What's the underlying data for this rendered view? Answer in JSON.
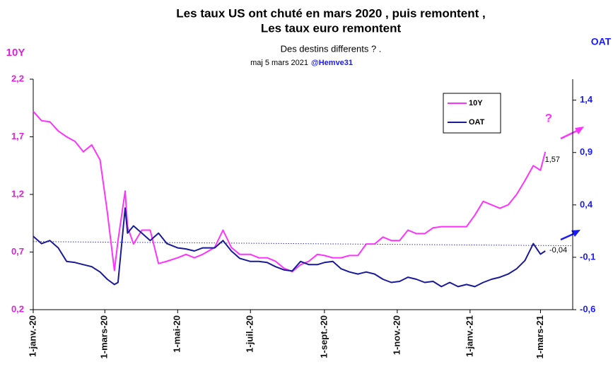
{
  "chart_data": {
    "type": "line",
    "title": [
      "Les taux  US ont chuté en mars 2020 , puis remontent ,",
      "Les taux euro remontent"
    ],
    "subtitle": "Des destins differents ?  .",
    "update": "maj 5 mars 2021",
    "credit": "@Hemve31",
    "ylabel": "10Y",
    "y2label": "OAT",
    "x": [
      "2020-01-01",
      "2020-01-08",
      "2020-01-15",
      "2020-01-22",
      "2020-01-29",
      "2020-02-05",
      "2020-02-12",
      "2020-02-19",
      "2020-02-26",
      "2020-03-03",
      "2020-03-09",
      "2020-03-12",
      "2020-03-18",
      "2020-03-20",
      "2020-03-25",
      "2020-04-01",
      "2020-04-08",
      "2020-04-15",
      "2020-04-22",
      "2020-05-01",
      "2020-05-08",
      "2020-05-15",
      "2020-05-22",
      "2020-06-01",
      "2020-06-08",
      "2020-06-15",
      "2020-06-22",
      "2020-07-01",
      "2020-07-08",
      "2020-07-15",
      "2020-07-22",
      "2020-07-29",
      "2020-08-05",
      "2020-08-12",
      "2020-08-19",
      "2020-08-26",
      "2020-09-01",
      "2020-09-08",
      "2020-09-15",
      "2020-09-22",
      "2020-09-29",
      "2020-10-06",
      "2020-10-13",
      "2020-10-20",
      "2020-10-27",
      "2020-11-03",
      "2020-11-10",
      "2020-11-17",
      "2020-11-24",
      "2020-12-01",
      "2020-12-08",
      "2020-12-15",
      "2020-12-22",
      "2020-12-29",
      "2021-01-05",
      "2021-01-12",
      "2021-01-19",
      "2021-01-26",
      "2021-02-02",
      "2021-02-09",
      "2021-02-16",
      "2021-02-23",
      "2021-03-01",
      "2021-03-05"
    ],
    "series": [
      {
        "name": "10Y",
        "color": "#ff33ff",
        "axis": "y",
        "values": [
          1.92,
          1.84,
          1.83,
          1.75,
          1.7,
          1.66,
          1.57,
          1.63,
          1.5,
          1.05,
          0.54,
          0.8,
          1.23,
          0.92,
          0.77,
          0.89,
          0.89,
          0.6,
          0.62,
          0.65,
          0.68,
          0.65,
          0.68,
          0.74,
          0.89,
          0.74,
          0.68,
          0.68,
          0.65,
          0.65,
          0.62,
          0.56,
          0.53,
          0.59,
          0.62,
          0.68,
          0.67,
          0.65,
          0.65,
          0.67,
          0.67,
          0.77,
          0.77,
          0.83,
          0.8,
          0.8,
          0.89,
          0.86,
          0.86,
          0.91,
          0.92,
          0.92,
          0.92,
          0.92,
          1.02,
          1.14,
          1.11,
          1.08,
          1.11,
          1.2,
          1.32,
          1.45,
          1.41,
          1.57
        ]
      },
      {
        "name": "OAT",
        "color": "#1a1a99",
        "axis": "y2",
        "values": [
          0.1,
          0.03,
          0.06,
          -0.01,
          -0.14,
          -0.15,
          -0.17,
          -0.19,
          -0.24,
          -0.31,
          -0.36,
          -0.34,
          0.37,
          0.13,
          0.2,
          0.13,
          0.06,
          0.13,
          0.03,
          -0.01,
          -0.02,
          -0.04,
          -0.01,
          -0.01,
          0.06,
          -0.04,
          -0.11,
          -0.14,
          -0.14,
          -0.15,
          -0.19,
          -0.22,
          -0.23,
          -0.14,
          -0.17,
          -0.17,
          -0.15,
          -0.14,
          -0.21,
          -0.24,
          -0.26,
          -0.24,
          -0.26,
          -0.31,
          -0.34,
          -0.33,
          -0.29,
          -0.31,
          -0.34,
          -0.33,
          -0.38,
          -0.34,
          -0.38,
          -0.36,
          -0.38,
          -0.34,
          -0.31,
          -0.29,
          -0.26,
          -0.21,
          -0.13,
          0.03,
          -0.07,
          -0.04
        ]
      }
    ],
    "trend_line": {
      "x": [
        "2020-01-01",
        "2021-03-28"
      ],
      "values": [
        0.05,
        0.01
      ],
      "axis": "y2",
      "color": "#3333cc"
    },
    "annotations": [
      {
        "text": "1,57"
      },
      {
        "text": "-0,04"
      },
      {
        "text": "?"
      }
    ],
    "xlim": [
      "2020-01-01",
      "2021-03-28"
    ],
    "xticks": [
      {
        "value": "2020-01-01",
        "label": "1-janv.-20"
      },
      {
        "value": "2020-03-01",
        "label": "1-mars-20"
      },
      {
        "value": "2020-05-01",
        "label": "1-mai-20"
      },
      {
        "value": "2020-07-01",
        "label": "1-juil.-20"
      },
      {
        "value": "2020-09-01",
        "label": "1-sept.-20"
      },
      {
        "value": "2020-11-01",
        "label": "1-nov.-20"
      },
      {
        "value": "2021-01-01",
        "label": "1-janv.-21"
      },
      {
        "value": "2021-03-01",
        "label": "1-mars-21"
      }
    ],
    "ylim": [
      0.2,
      2.2
    ],
    "yticks": [
      {
        "value": 0.2,
        "label": "0,2"
      },
      {
        "value": 0.7,
        "label": "0,7"
      },
      {
        "value": 1.2,
        "label": "1,2"
      },
      {
        "value": 1.7,
        "label": "1,7"
      },
      {
        "value": 2.2,
        "label": "2,2"
      }
    ],
    "y2lim": [
      -0.6,
      1.6
    ],
    "y2ticks": [
      {
        "value": -0.6,
        "label": "-0,6"
      },
      {
        "value": -0.1,
        "label": "-0,1"
      },
      {
        "value": 0.4,
        "label": "0,4"
      },
      {
        "value": 0.9,
        "label": "0,9"
      },
      {
        "value": 1.4,
        "label": "1,4"
      }
    ],
    "legend": "upper right"
  }
}
